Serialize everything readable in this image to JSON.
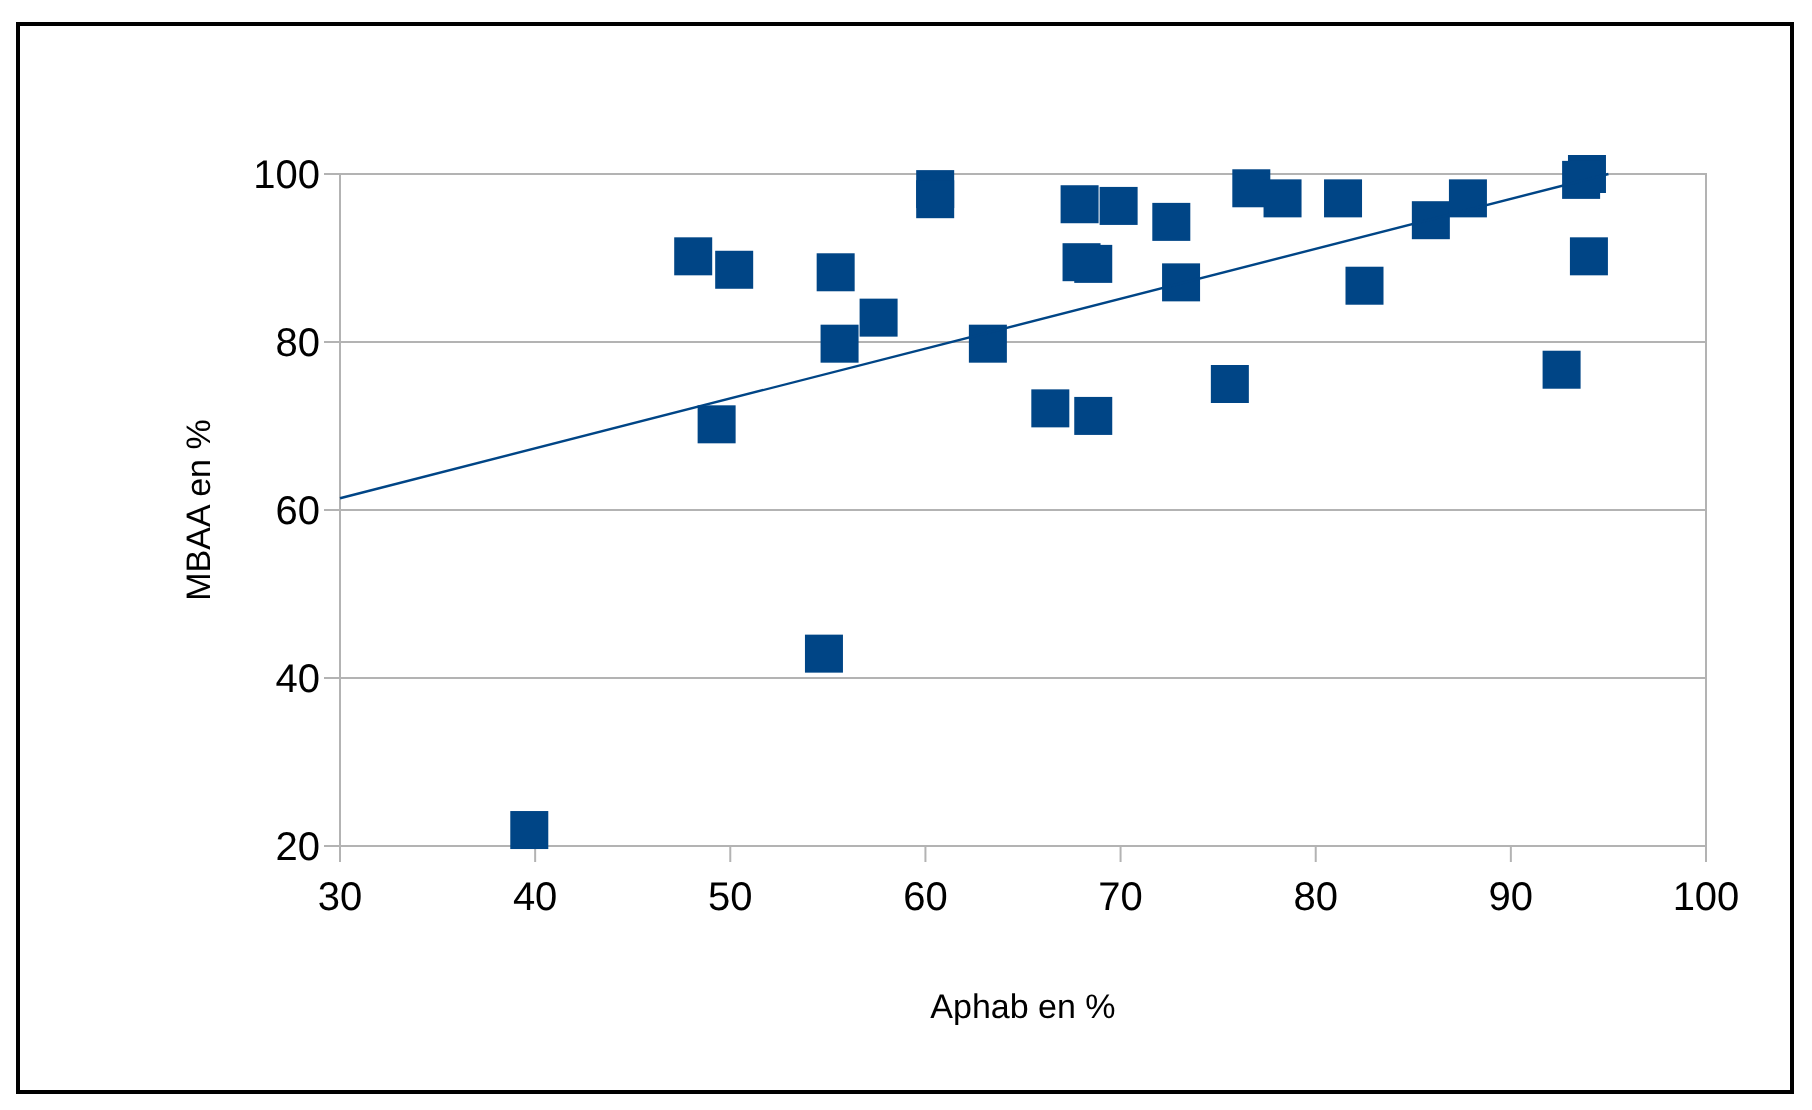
{
  "chart_data": {
    "type": "scatter",
    "xlabel": "Aphab en %",
    "ylabel": "MBAA en %",
    "xlim": [
      30,
      100
    ],
    "ylim": [
      20,
      100
    ],
    "xticks": [
      30,
      40,
      50,
      60,
      70,
      80,
      90,
      100
    ],
    "yticks": [
      20,
      40,
      60,
      80,
      100
    ],
    "grid": "y",
    "marker": "square",
    "series": [
      {
        "color": "#004586",
        "x": [
          39.7,
          48.1,
          49.3,
          50.2,
          55.4,
          57.6,
          55.6,
          63.2,
          54.8,
          60.5,
          60.5,
          66.4,
          68.6,
          67.9,
          69.9,
          68.0,
          68.6,
          72.6,
          73.1,
          75.6,
          76.7,
          78.3,
          81.4,
          82.5,
          85.9,
          87.8,
          92.6,
          93.9,
          93.6,
          94.0
        ],
        "values": [
          21.9,
          90.2,
          70.2,
          88.6,
          88.3,
          82.9,
          79.8,
          79.8,
          42.9,
          98.2,
          97.0,
          72.1,
          71.2,
          96.4,
          96.2,
          89.5,
          89.3,
          94.3,
          87.1,
          75.0,
          98.3,
          97.1,
          97.1,
          86.7,
          94.5,
          97.1,
          76.7,
          100,
          99.3,
          90.2
        ]
      },
      {
        "type": "line",
        "color": "#004586",
        "marker": "none",
        "x": [
          30,
          95
        ],
        "values": [
          61.4,
          100
        ]
      }
    ]
  }
}
